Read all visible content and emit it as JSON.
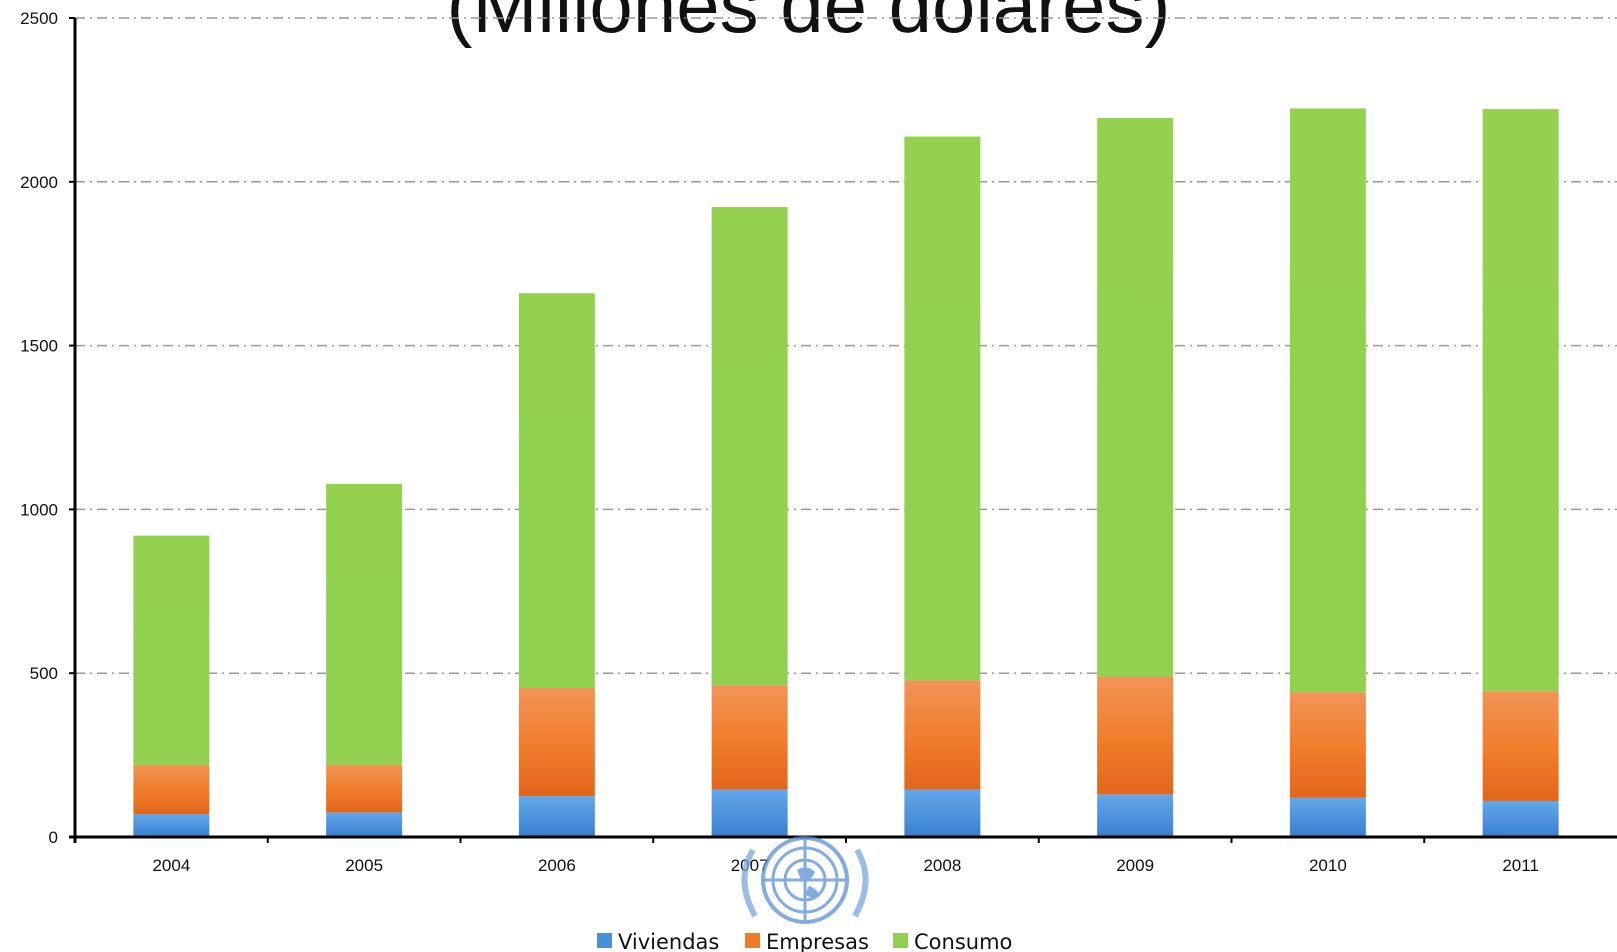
{
  "chart_data": {
    "type": "bar",
    "stacked": true,
    "title": "(Millones de dólares)",
    "categories": [
      "2004",
      "2005",
      "2006",
      "2007",
      "2008",
      "2009",
      "2010",
      "2011"
    ],
    "series": [
      {
        "name": "Viviendas",
        "color": "#4a90d9",
        "values": [
          70,
          75,
          125,
          145,
          145,
          130,
          120,
          110
        ]
      },
      {
        "name": "Empresas",
        "color": "#ef7a2a",
        "values": [
          150,
          145,
          330,
          318,
          333,
          360,
          322,
          335
        ]
      },
      {
        "name": "Consumo",
        "color": "#92d050",
        "values": [
          700,
          858,
          1205,
          1460,
          1660,
          1705,
          1782,
          1777
        ]
      }
    ],
    "ylim": [
      0,
      2500
    ],
    "yticks": [
      0,
      500,
      1000,
      1500,
      2000,
      2500
    ],
    "grid": true,
    "legend_position": "bottom"
  }
}
